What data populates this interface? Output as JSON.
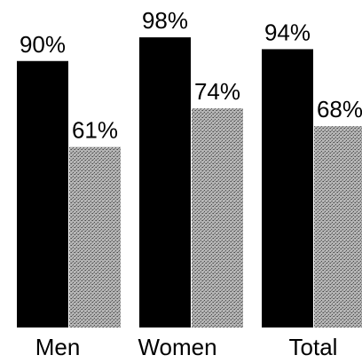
{
  "chart_data": {
    "type": "bar",
    "categories": [
      "Men",
      "Women",
      "Total"
    ],
    "series": [
      {
        "values": [
          90,
          98,
          94
        ],
        "labels": [
          "90%",
          "98%",
          "94%"
        ],
        "color": "#000000"
      },
      {
        "values": [
          61,
          74,
          68
        ],
        "labels": [
          "61%",
          "74%",
          "68%"
        ],
        "color": "#9a9a9a"
      }
    ],
    "ylim": [
      0,
      100
    ]
  }
}
